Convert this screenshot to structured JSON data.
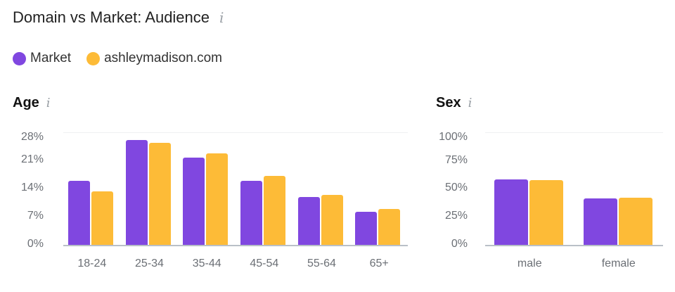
{
  "header": {
    "title": "Domain vs Market: Audience",
    "info_icon": "i"
  },
  "legend": [
    {
      "label": "Market",
      "color": "#8047e0"
    },
    {
      "label": "ashleymadison.com",
      "color": "#fdbb37"
    }
  ],
  "sections": {
    "age": {
      "title": "Age",
      "info_icon": "i"
    },
    "sex": {
      "title": "Sex",
      "info_icon": "i"
    }
  },
  "chart_data": [
    {
      "type": "bar",
      "title": "Age",
      "categories": [
        "18-24",
        "25-34",
        "35-44",
        "45-54",
        "55-64",
        "65+"
      ],
      "series": [
        {
          "name": "Market",
          "color": "#8047e0",
          "values": [
            15.9,
            26.1,
            21.7,
            15.9,
            11.9,
            8.2
          ]
        },
        {
          "name": "ashleymadison.com",
          "color": "#fdbb37",
          "values": [
            13.3,
            25.4,
            22.8,
            17.2,
            12.4,
            8.9
          ]
        }
      ],
      "yticks": [
        "28%",
        "21%",
        "14%",
        "7%",
        "0%"
      ],
      "ylim": [
        0,
        28
      ],
      "xlabel": "",
      "ylabel": "",
      "grid": true,
      "legend_position": "top"
    },
    {
      "type": "bar",
      "title": "Sex",
      "categories": [
        "male",
        "female"
      ],
      "series": [
        {
          "name": "Market",
          "color": "#8047e0",
          "values": [
            58,
            41
          ]
        },
        {
          "name": "ashleymadison.com",
          "color": "#fdbb37",
          "values": [
            57.5,
            42
          ]
        }
      ],
      "yticks": [
        "100%",
        "75%",
        "50%",
        "25%",
        "0%"
      ],
      "ylim": [
        0,
        100
      ],
      "xlabel": "",
      "ylabel": "",
      "grid": true,
      "legend_position": "top"
    }
  ]
}
